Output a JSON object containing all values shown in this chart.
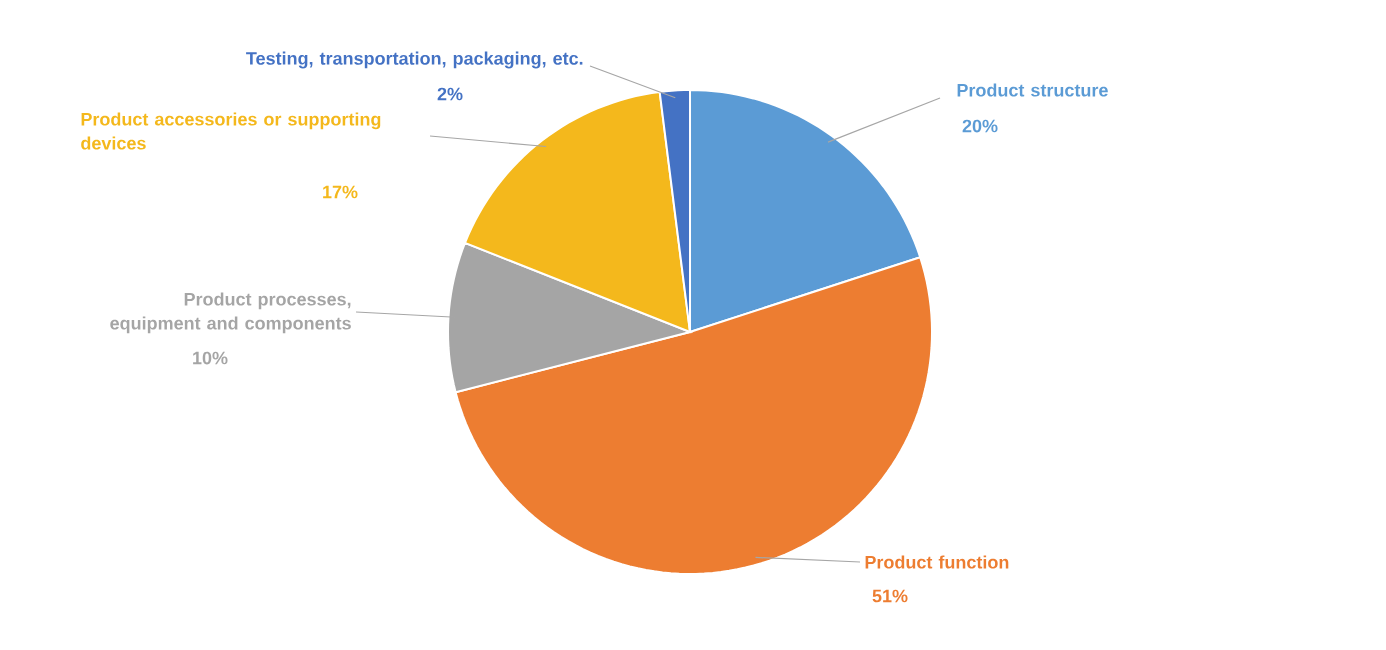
{
  "chart_data": {
    "type": "pie",
    "categories": [
      "Product structure",
      "Product function",
      "Product processes, equipment and components",
      "Product accessories or supporting devices",
      "Testing, transportation, packaging, etc."
    ],
    "values": [
      20,
      51,
      10,
      17,
      2
    ],
    "value_labels": [
      "20%",
      "51%",
      "10%",
      "17%",
      "2%"
    ],
    "colors": [
      "#5b9bd5",
      "#ed7d31",
      "#a5a5a5",
      "#f4b81c",
      "#4472c4"
    ]
  }
}
